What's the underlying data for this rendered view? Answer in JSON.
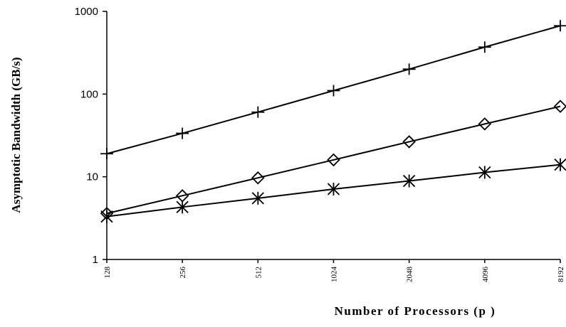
{
  "chart_data": {
    "type": "line",
    "title": "",
    "xlabel": "Number of Processors (p )",
    "ylabel": "Asymptotic Bandwidth (GB/s)",
    "x_scale": "log2",
    "y_scale": "log10",
    "ylim": [
      1,
      1000
    ],
    "categories": [
      "128",
      "256",
      "512",
      "1024",
      "2048",
      "4096",
      "8192"
    ],
    "x": [
      128,
      256,
      512,
      1024,
      2048,
      4096,
      8192
    ],
    "y_ticks": [
      "1",
      "10",
      "100",
      "1000"
    ],
    "grid": false,
    "legend": "none",
    "series": [
      {
        "marker": "plus",
        "values": [
          19,
          33.5,
          60.5,
          110,
          200,
          370,
          670
        ]
      },
      {
        "marker": "diamond",
        "values": [
          3.6,
          5.9,
          9.7,
          16,
          26.5,
          43.5,
          71
        ]
      },
      {
        "marker": "star",
        "values": [
          3.3,
          4.3,
          5.5,
          7.1,
          8.9,
          11.3,
          14
        ]
      }
    ]
  }
}
